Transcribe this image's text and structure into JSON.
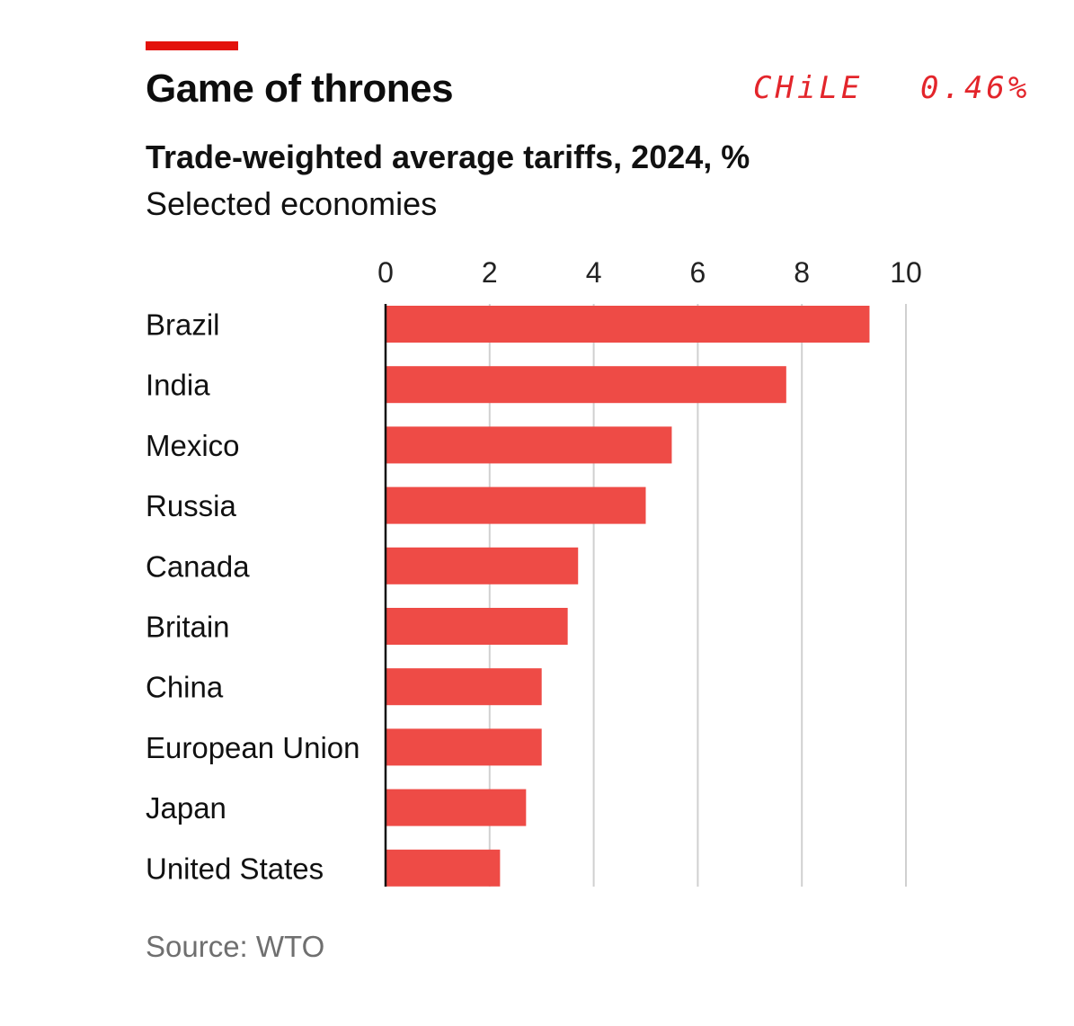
{
  "header": {
    "title": "Game of thrones",
    "subtitle": "Trade-weighted average tariffs, 2024, %",
    "description": "Selected economies"
  },
  "annotation": {
    "country": "CHiLE",
    "value": "0.46%"
  },
  "source": "Source: WTO",
  "colors": {
    "accent": "#e3120b",
    "bar": "#ee4b46",
    "gridline": "#d0d0d0",
    "annotation": "#e3252b"
  },
  "chart_data": {
    "type": "bar",
    "orientation": "horizontal",
    "title": "Trade-weighted average tariffs, 2024, %",
    "subtitle": "Selected economies",
    "categories": [
      "Brazil",
      "India",
      "Mexico",
      "Russia",
      "Canada",
      "Britain",
      "China",
      "European Union",
      "Japan",
      "United States"
    ],
    "values": [
      9.3,
      7.7,
      5.5,
      5.0,
      3.7,
      3.5,
      3.0,
      3.0,
      2.7,
      2.2
    ],
    "xlim": [
      0,
      10
    ],
    "xticks": [
      "0",
      "2",
      "4",
      "6",
      "8",
      "10"
    ],
    "axis_position": "top",
    "grid": true
  }
}
